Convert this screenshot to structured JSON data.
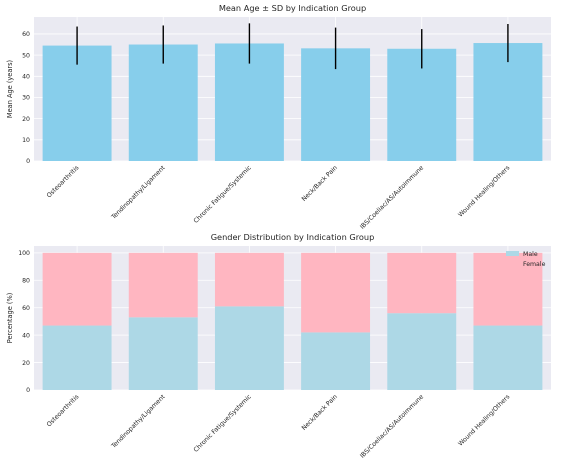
{
  "colors": {
    "axes_bg": "#EAEAF2",
    "grid": "#FFFFFF",
    "age_bar": "#87CEEB",
    "errorbar": "#000000",
    "male": "#ADD8E6",
    "female": "#FFB6C1"
  },
  "chart_data": [
    {
      "type": "bar",
      "title": "Mean Age ± SD by Indication Group",
      "xlabel": "",
      "ylabel": "Mean Age (years)",
      "categories": [
        "Osteoarthritis",
        "Tendinopathy/Ligament",
        "Chronic Fatigue/Systemic",
        "Neck/Back Pain",
        "IBS/Coeliac/AS/Autoimmune",
        "Wound Healing/Others"
      ],
      "values": [
        54.5,
        55,
        55.5,
        53.2,
        53,
        55.7
      ],
      "sd": [
        9,
        9,
        9.5,
        9.8,
        9.3,
        9
      ],
      "yticks": [
        0,
        10,
        20,
        30,
        40,
        50,
        60
      ],
      "ylim": [
        0,
        68
      ],
      "grid": true
    },
    {
      "type": "bar",
      "stacked": true,
      "title": "Gender Distribution by Indication Group",
      "xlabel": "",
      "ylabel": "Percentage (%)",
      "categories": [
        "Osteoarthritis",
        "Tendinopathy/Ligament",
        "Chronic Fatigue/Systemic",
        "Neck/Back Pain",
        "IBS/Coeliac/AS/Autoimmune",
        "Wound Healing/Others"
      ],
      "series": [
        {
          "name": "Male",
          "values": [
            47,
            53,
            61,
            42,
            56,
            47
          ]
        },
        {
          "name": "Female",
          "values": [
            53,
            47,
            39,
            58,
            44,
            53
          ]
        }
      ],
      "yticks": [
        0,
        20,
        40,
        60,
        80,
        100
      ],
      "ylim": [
        0,
        105
      ],
      "legend": "top-right",
      "grid": true
    }
  ]
}
